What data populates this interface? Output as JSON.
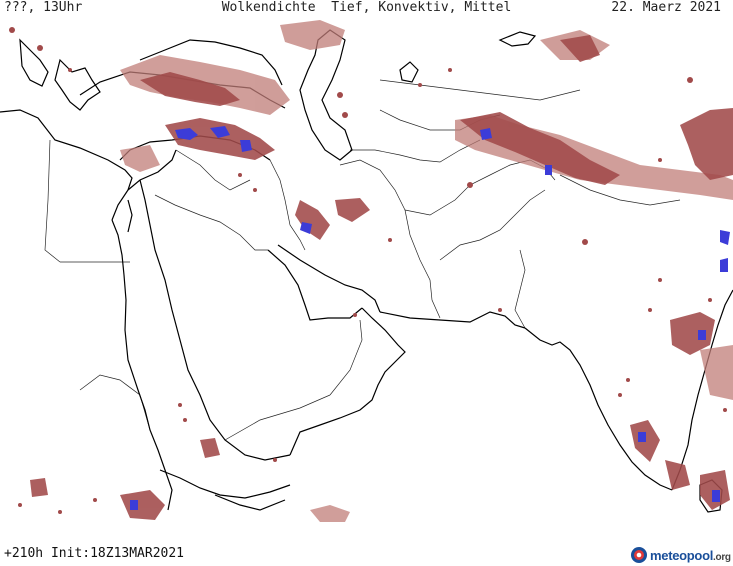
{
  "header": {
    "left": "???, 13Uhr",
    "title": "Wolkendichte  Tief, Konvektiv, Mittel",
    "date": "22. Maerz 2021"
  },
  "footer": {
    "forecast": "+210h Init:18Z13MAR2021",
    "logo_main": "meteopool",
    "logo_suffix": ".org"
  },
  "map": {
    "region": "Middle East / South Asia",
    "cloud_colors": {
      "medium": "#a14a4a",
      "light": "#c07d78",
      "dense": "#3c3cd8"
    }
  }
}
